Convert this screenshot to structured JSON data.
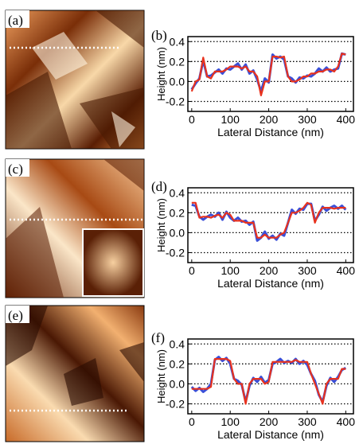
{
  "images": [
    {
      "label": "(a)"
    },
    {
      "label": "(c)"
    },
    {
      "label": "(e)"
    }
  ],
  "chart_data": [
    {
      "type": "line",
      "panel_label": "(b)",
      "xlabel": "Lateral Distance (nm)",
      "ylabel": "Height (nm)",
      "xlim": [
        -10,
        420
      ],
      "ylim": [
        -0.3,
        0.45
      ],
      "xticks": [
        0,
        100,
        200,
        300,
        400
      ],
      "yticks": [
        0.4,
        0.2,
        {
          "value": 0,
          "label": "0.0"
        },
        -0.2
      ],
      "grid": true,
      "x": [
        0,
        10,
        20,
        30,
        40,
        50,
        60,
        70,
        80,
        90,
        100,
        110,
        120,
        130,
        140,
        150,
        160,
        170,
        180,
        190,
        200,
        210,
        220,
        230,
        240,
        250,
        260,
        270,
        280,
        290,
        300,
        310,
        320,
        330,
        340,
        350,
        360,
        370,
        380,
        390,
        400
      ],
      "series": [
        {
          "color": "#3a4fd8",
          "values": [
            -0.08,
            -0.02,
            0.03,
            0.21,
            0.05,
            0.06,
            0.09,
            0.12,
            0.08,
            0.13,
            0.12,
            0.15,
            0.18,
            0.12,
            0.17,
            0.08,
            0.11,
            0.02,
            -0.1,
            0.03,
            -0.01,
            0.27,
            0.23,
            0.25,
            0.22,
            0.05,
            0.03,
            -0.01,
            0.04,
            0.03,
            0.06,
            0.05,
            0.08,
            0.13,
            0.1,
            0.14,
            0.1,
            0.12,
            0.13,
            0.28,
            0.27
          ]
        },
        {
          "color": "#e8321e",
          "values": [
            -0.1,
            0.0,
            0.02,
            0.24,
            0.05,
            0.03,
            0.1,
            0.1,
            0.1,
            0.12,
            0.15,
            0.15,
            0.15,
            0.13,
            0.15,
            0.1,
            0.1,
            0.05,
            -0.14,
            0.0,
            0.0,
            0.25,
            0.25,
            0.24,
            0.25,
            0.05,
            0.0,
            0.0,
            0.02,
            0.05,
            0.05,
            0.08,
            0.08,
            0.1,
            0.1,
            0.12,
            0.12,
            0.1,
            0.15,
            0.28,
            0.27
          ]
        }
      ]
    },
    {
      "type": "line",
      "panel_label": "(d)",
      "xlabel": "Lateral Distance (nm)",
      "ylabel": "Height (nm)",
      "xlim": [
        -10,
        420
      ],
      "ylim": [
        -0.3,
        0.45
      ],
      "xticks": [
        0,
        100,
        200,
        300,
        400
      ],
      "yticks": [
        0.4,
        0.2,
        {
          "value": 0,
          "label": "0.0"
        },
        -0.2
      ],
      "grid": true,
      "x": [
        0,
        10,
        20,
        30,
        40,
        50,
        60,
        70,
        80,
        90,
        100,
        110,
        120,
        130,
        140,
        150,
        160,
        170,
        180,
        190,
        200,
        210,
        220,
        230,
        240,
        250,
        260,
        270,
        280,
        290,
        300,
        310,
        320,
        330,
        340,
        350,
        360,
        370,
        380,
        390,
        400
      ],
      "series": [
        {
          "color": "#3a4fd8",
          "values": [
            0.28,
            0.27,
            0.16,
            0.13,
            0.16,
            0.18,
            0.16,
            0.2,
            0.13,
            0.21,
            0.15,
            0.12,
            0.15,
            0.11,
            0.12,
            0.08,
            0.11,
            -0.08,
            -0.05,
            0.01,
            -0.06,
            -0.03,
            -0.07,
            -0.01,
            -0.03,
            0.1,
            0.23,
            0.19,
            0.24,
            0.23,
            0.29,
            0.29,
            0.12,
            0.18,
            0.26,
            0.22,
            0.25,
            0.27,
            0.24,
            0.27,
            0.23
          ]
        },
        {
          "color": "#e8321e",
          "values": [
            0.3,
            0.3,
            0.15,
            0.16,
            0.16,
            0.15,
            0.17,
            0.18,
            0.15,
            0.2,
            0.18,
            0.12,
            0.12,
            0.12,
            0.1,
            0.1,
            0.1,
            -0.05,
            -0.05,
            -0.02,
            -0.05,
            -0.05,
            -0.05,
            -0.02,
            0.0,
            0.1,
            0.2,
            0.2,
            0.22,
            0.25,
            0.3,
            0.28,
            0.1,
            0.2,
            0.25,
            0.25,
            0.25,
            0.24,
            0.25,
            0.25,
            0.25
          ]
        }
      ]
    },
    {
      "type": "line",
      "panel_label": "(f)",
      "xlabel": "Lateral Distance (nm)",
      "ylabel": "Height (nm)",
      "xlim": [
        -10,
        420
      ],
      "ylim": [
        -0.3,
        0.45
      ],
      "xticks": [
        0,
        100,
        200,
        300,
        400
      ],
      "yticks": [
        0.4,
        0.2,
        {
          "value": 0,
          "label": "0.0"
        },
        -0.2
      ],
      "grid": true,
      "x": [
        0,
        10,
        20,
        30,
        40,
        50,
        60,
        70,
        80,
        90,
        100,
        110,
        120,
        130,
        140,
        150,
        160,
        170,
        180,
        190,
        200,
        210,
        220,
        230,
        240,
        250,
        260,
        270,
        280,
        290,
        300,
        310,
        320,
        330,
        340,
        350,
        360,
        370,
        380,
        390,
        400
      ],
      "series": [
        {
          "color": "#3a4fd8",
          "values": [
            -0.03,
            -0.07,
            -0.04,
            -0.08,
            -0.05,
            0.0,
            0.24,
            0.27,
            0.23,
            0.26,
            0.2,
            0.05,
            0.03,
            -0.01,
            -0.18,
            -0.02,
            0.06,
            0.02,
            0.07,
            0.01,
            0.04,
            0.2,
            0.22,
            0.25,
            0.21,
            0.23,
            0.21,
            0.25,
            0.2,
            0.23,
            0.19,
            0.1,
            0.03,
            -0.11,
            -0.18,
            -0.02,
            0.06,
            0.02,
            0.07,
            0.14,
            0.16
          ]
        },
        {
          "color": "#e8321e",
          "values": [
            -0.05,
            -0.05,
            -0.05,
            -0.05,
            -0.05,
            -0.03,
            0.25,
            0.25,
            0.25,
            0.25,
            0.23,
            0.05,
            0.0,
            0.0,
            -0.2,
            0.0,
            0.05,
            0.05,
            0.05,
            0.0,
            0.02,
            0.22,
            0.22,
            0.22,
            0.22,
            0.22,
            0.22,
            0.24,
            0.22,
            0.22,
            0.22,
            0.1,
            0.0,
            -0.1,
            -0.2,
            0.0,
            0.05,
            0.05,
            0.05,
            0.15,
            0.15
          ]
        }
      ]
    }
  ]
}
